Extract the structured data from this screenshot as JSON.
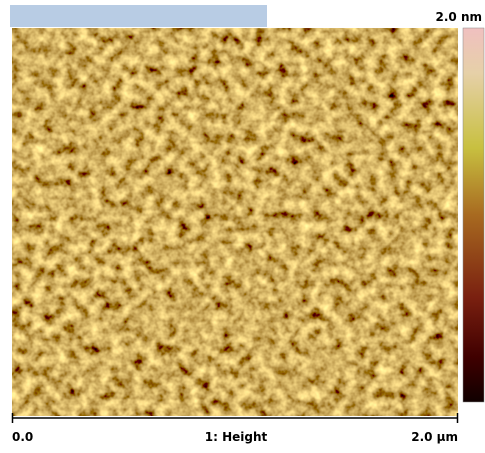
{
  "scale_max_label": "2.0 nm",
  "x_axis": {
    "start": "0.0",
    "title": "1: Height",
    "end": "2.0 µm"
  }
}
